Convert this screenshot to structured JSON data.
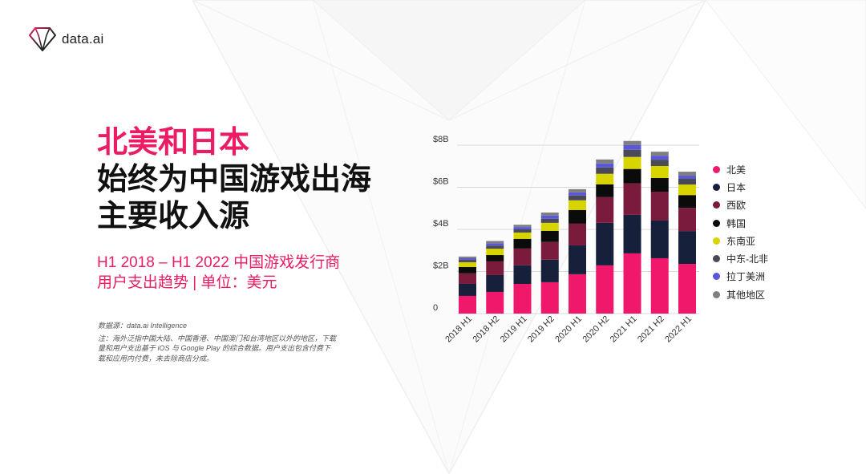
{
  "brand": {
    "name": "data.ai",
    "icon": "diamond-logo-icon"
  },
  "colors": {
    "accent": "#EC1C64",
    "text": "#111111"
  },
  "headline": {
    "line1": "北美和日本",
    "line2": "始终为中国游戏出海",
    "line3": "主要收入源"
  },
  "subtitle": {
    "line1": "H1 2018 – H1 2022 中国游戏发行商",
    "line2": "用户支出趋势 | 单位：美元"
  },
  "notes": {
    "source": "数据源：data.ai Intelligence",
    "lines": [
      "注：海外泛指中国大陆、中国香港、中国澳门和台湾地区以外的地区，下载",
      "量和用户支出基于 iOS 与 Google Play 的综合数据。用户支出包含付费下",
      "载和应用内付费，未去除商店分成。"
    ]
  },
  "chart_data": {
    "type": "bar",
    "stacked": true,
    "categories": [
      "2018 H1",
      "2018 H2",
      "2019 H1",
      "2019 H2",
      "2020 H1",
      "2020 H2",
      "2021 H1",
      "2021 H2",
      "2022 H1"
    ],
    "y_ticks": [
      {
        "value": 0,
        "label": "0"
      },
      {
        "value": 2,
        "label": "$2B"
      },
      {
        "value": 4,
        "label": "$4B"
      },
      {
        "value": 6,
        "label": "$6B"
      },
      {
        "value": 8,
        "label": "$8B"
      }
    ],
    "ylim": [
      0,
      8
    ],
    "grid": true,
    "legend": "right",
    "series": [
      {
        "name": "北美",
        "color": "#F0186A",
        "values": [
          0.84,
          1.03,
          1.41,
          1.49,
          1.87,
          2.29,
          2.86,
          2.63,
          2.36
        ]
      },
      {
        "name": "日本",
        "color": "#16203B",
        "values": [
          0.57,
          0.8,
          0.88,
          1.07,
          1.37,
          2.02,
          1.83,
          1.79,
          1.56
        ]
      },
      {
        "name": "西欧",
        "color": "#7A1B3D",
        "values": [
          0.5,
          0.65,
          0.8,
          0.84,
          1.03,
          1.22,
          1.49,
          1.37,
          1.1
        ]
      },
      {
        "name": "韩国",
        "color": "#0B0B0B",
        "values": [
          0.3,
          0.3,
          0.46,
          0.53,
          0.65,
          0.61,
          0.69,
          0.65,
          0.61
        ]
      },
      {
        "name": "东南亚",
        "color": "#D7D400",
        "values": [
          0.23,
          0.3,
          0.3,
          0.38,
          0.46,
          0.5,
          0.57,
          0.57,
          0.5
        ]
      },
      {
        "name": "中东-北非",
        "color": "#4A4A57",
        "values": [
          0.11,
          0.15,
          0.15,
          0.19,
          0.23,
          0.3,
          0.34,
          0.3,
          0.27
        ]
      },
      {
        "name": "拉丁美洲",
        "color": "#5A57D8",
        "values": [
          0.08,
          0.11,
          0.11,
          0.15,
          0.15,
          0.19,
          0.23,
          0.19,
          0.15
        ]
      },
      {
        "name": "其他地区",
        "color": "#7F7F7F",
        "values": [
          0.08,
          0.11,
          0.11,
          0.15,
          0.15,
          0.19,
          0.19,
          0.19,
          0.19
        ]
      }
    ]
  }
}
